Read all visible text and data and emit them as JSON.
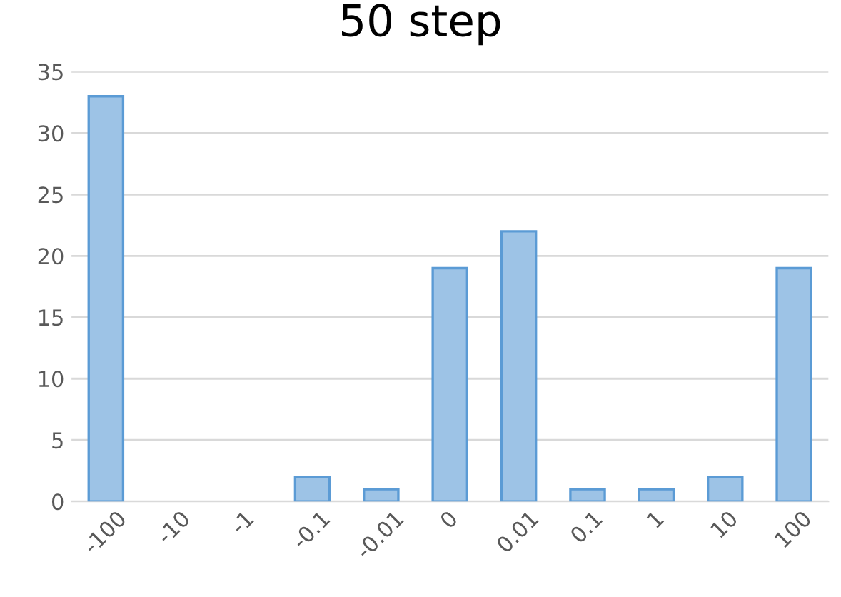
{
  "chart_data": {
    "type": "bar",
    "title": "50 step",
    "categories": [
      "-100",
      "-10",
      "-1",
      "-0.1",
      "-0.01",
      "0",
      "0.01",
      "0.1",
      "1",
      "10",
      "100"
    ],
    "values": [
      33,
      0,
      0,
      2,
      1,
      19,
      22,
      1,
      1,
      2,
      19
    ],
    "color": "#9dc3e6",
    "ylim": [
      0,
      35
    ],
    "yticks": [
      0,
      5,
      10,
      15,
      20,
      25,
      30,
      35
    ],
    "grid": "y",
    "legend": false
  }
}
